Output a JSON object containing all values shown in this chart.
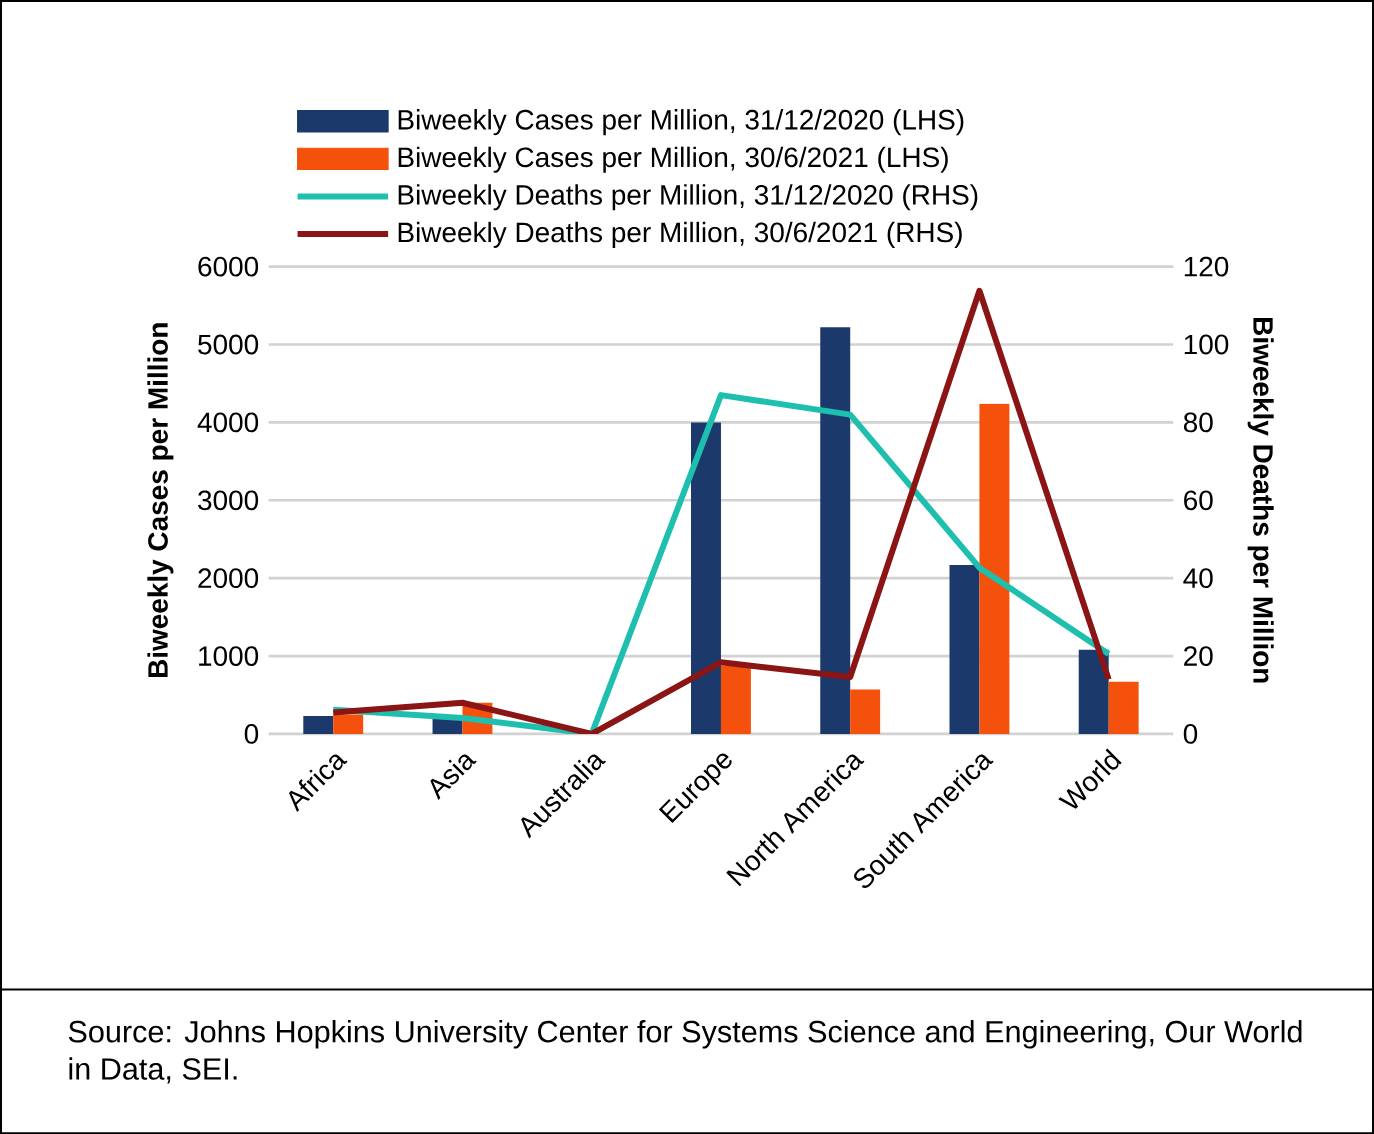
{
  "chart_data": {
    "type": "bar",
    "categories": [
      "Africa",
      "Asia",
      "Australia",
      "Europe",
      "North America",
      "South America",
      "World"
    ],
    "series": [
      {
        "name": "Biweekly Cases per Million, 31/12/2020 (LHS)",
        "color": "#1b3a6b",
        "values": [
          230,
          230,
          0,
          4000,
          5220,
          2170,
          1080
        ]
      },
      {
        "name": "Biweekly Cases per Million, 30/6/2021 (LHS)",
        "color": "#f4520c",
        "values": [
          250,
          400,
          0,
          880,
          570,
          4240,
          670
        ]
      },
      {
        "name": "Biweekly Deaths per Million, 31/12/2020 (RHS)",
        "type": "line",
        "axis": "y2",
        "color": "#1fbfb0",
        "values": [
          6.2,
          4.1,
          0,
          87,
          82,
          42.7,
          20.5
        ]
      },
      {
        "name": "Biweekly Deaths per Million, 30/6/2021 (RHS)",
        "type": "line",
        "axis": "y2",
        "color": "#8b1414",
        "values": [
          5.5,
          8,
          0,
          18.4,
          14.6,
          113.8,
          14
        ]
      }
    ],
    "ylabel": "Biweekly Cases per Million",
    "y2label": "Biweekly Deaths per Million",
    "ylim": [
      0,
      6000
    ],
    "yticks": [
      0,
      1000,
      2000,
      3000,
      4000,
      5000,
      6000
    ],
    "y2lim": [
      0,
      120
    ],
    "y2ticks": [
      0,
      20,
      40,
      60,
      80,
      100,
      120
    ],
    "grid": "y",
    "legend": "top",
    "marker": "none",
    "line_style": "solid",
    "annotations": [
      "Source: Johns Hopkins University Center for Systems Science and Engineering, Our World in Data, SEI."
    ]
  }
}
